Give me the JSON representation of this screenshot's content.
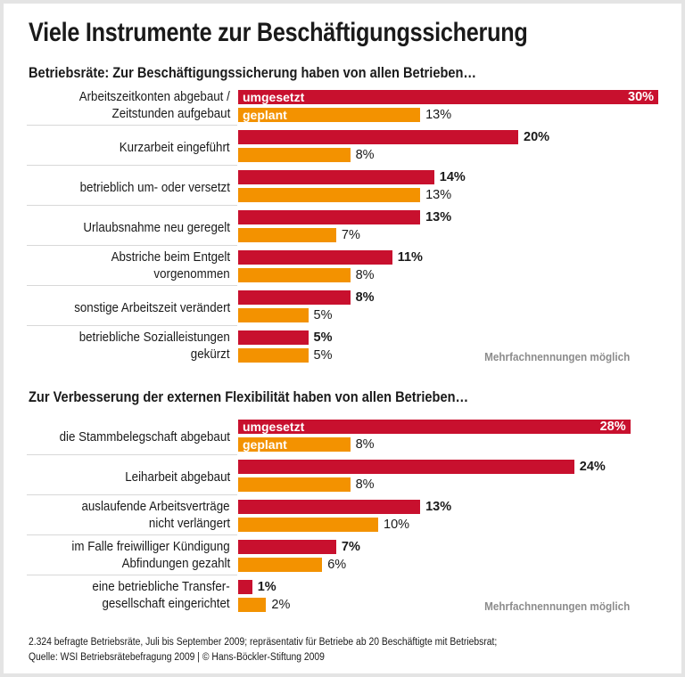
{
  "title": "Viele Instrumente zur Beschäftigungssicherung",
  "footer": [
    "2.324 befragte Betriebsräte, Juli bis September 2009; repräsentativ für Betriebe ab 20 Beschäftigte mit Betriebsrat;",
    "Quelle: WSI Betriebsrätebefragung 2009 | © Hans-Böckler-Stiftung 2009"
  ],
  "colors": {
    "umgesetzt": "#c8102e",
    "geplant": "#f39200",
    "note": "#8c8c8c"
  },
  "chart_data": [
    {
      "type": "bar",
      "orientation": "horizontal",
      "title": "Betriebsräte: Zur Beschäftigungssicherung haben von allen Betrieben…",
      "unit": "%",
      "note": "Mehrfachnennungen möglich",
      "categories": [
        [
          "Arbeitszeitkonten abgebaut /",
          "Zeitstunden aufgebaut"
        ],
        [
          "Kurzarbeit eingeführt"
        ],
        [
          "betrieblich um- oder versetzt"
        ],
        [
          "Urlaubsnahme neu geregelt"
        ],
        [
          "Abstriche beim Entgelt",
          "vorgenommen"
        ],
        [
          "sonstige Arbeitszeit verändert"
        ],
        [
          "betriebliche Sozialleistungen",
          "gekürzt"
        ]
      ],
      "series": [
        {
          "name": "umgesetzt",
          "values": [
            30,
            20,
            14,
            13,
            11,
            8,
            5
          ]
        },
        {
          "name": "geplant",
          "values": [
            13,
            8,
            13,
            7,
            8,
            5,
            5
          ]
        }
      ],
      "value_labels": {
        "umgesetzt": [
          "30%",
          "20%",
          "14%",
          "13%",
          "11%",
          "8%",
          "5%"
        ],
        "geplant": [
          "13%",
          "8%",
          "13%",
          "7%",
          "8%",
          "5%",
          "5%"
        ]
      }
    },
    {
      "type": "bar",
      "orientation": "horizontal",
      "title": "Zur Verbesserung der externen Flexibilität haben von allen Betrieben…",
      "unit": "%",
      "note": "Mehrfachnennungen möglich",
      "categories": [
        [
          "die Stammbelegschaft abgebaut"
        ],
        [
          "Leiharbeit abgebaut"
        ],
        [
          "auslaufende Arbeitsverträge",
          "nicht verlängert"
        ],
        [
          "im Falle freiwilliger Kündigung",
          "Abfindungen gezahlt"
        ],
        [
          "eine betriebliche Transfer-",
          "gesellschaft eingerichtet"
        ]
      ],
      "series": [
        {
          "name": "umgesetzt",
          "values": [
            28,
            24,
            13,
            7,
            1
          ]
        },
        {
          "name": "geplant",
          "values": [
            8,
            8,
            10,
            6,
            2
          ]
        }
      ],
      "value_labels": {
        "umgesetzt": [
          "28%",
          "24%",
          "13%",
          "7%",
          "1%"
        ],
        "geplant": [
          "8%",
          "8%",
          "10%",
          "6%",
          "2%"
        ]
      }
    }
  ]
}
